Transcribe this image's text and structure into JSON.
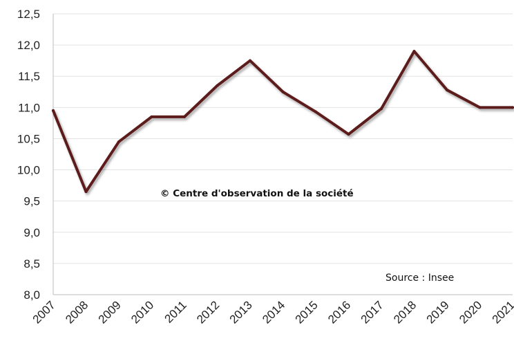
{
  "chart_data": {
    "type": "line",
    "x": [
      "2007",
      "2008",
      "2009",
      "2010",
      "2011",
      "2012",
      "2013",
      "2014",
      "2015",
      "2016",
      "2017",
      "2018",
      "2019",
      "2020",
      "2021"
    ],
    "y_ticks": [
      "12,5",
      "12,0",
      "11,5",
      "11,0",
      "10,5",
      "10,0",
      "9,5",
      "9,0",
      "8,5",
      "8,0"
    ],
    "series": [
      {
        "values": [
          10.95,
          9.65,
          10.45,
          10.85,
          10.85,
          11.35,
          11.75,
          11.25,
          10.93,
          10.57,
          10.98,
          11.9,
          11.28,
          11.0,
          11.0
        ]
      }
    ],
    "ylim": [
      8.0,
      12.5
    ],
    "grid": "horizontal",
    "title": "",
    "xlabel": "",
    "ylabel": "",
    "line_color": "#5b1a1a",
    "watermark": "© Centre d'observation de la société",
    "source": "Source : Insee"
  }
}
